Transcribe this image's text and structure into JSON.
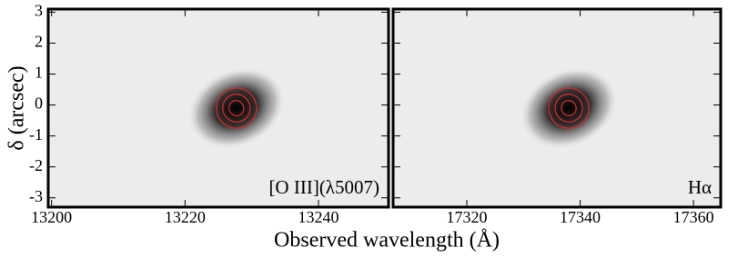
{
  "chart_data": [
    {
      "type": "spectrum2d",
      "label": "[O III](λ5007)",
      "ylabel": "δ (arcsec)",
      "xlim": [
        13199.5,
        13250.5
      ],
      "xticks": [
        13200,
        13220,
        13240
      ],
      "ylim": [
        -3.3,
        3.1
      ],
      "yticks": [
        3,
        2,
        1,
        0,
        -1,
        -2,
        -3
      ],
      "features": [
        {
          "x": 13227.7,
          "y": -0.1
        }
      ],
      "contour_color": "#d62728"
    },
    {
      "type": "spectrum2d",
      "label": "Hα",
      "xlim": [
        17307,
        17364.8
      ],
      "xticks": [
        17320,
        17340,
        17360
      ],
      "ylim": [
        -3.3,
        3.1
      ],
      "yticks": [
        3,
        2,
        1,
        0,
        -1,
        -2,
        -3
      ],
      "features": [
        {
          "x": 17338,
          "y": -0.1
        }
      ],
      "contour_color": "#d62728"
    }
  ],
  "figure": {
    "xlabel": "Observed wavelength (Å)"
  }
}
